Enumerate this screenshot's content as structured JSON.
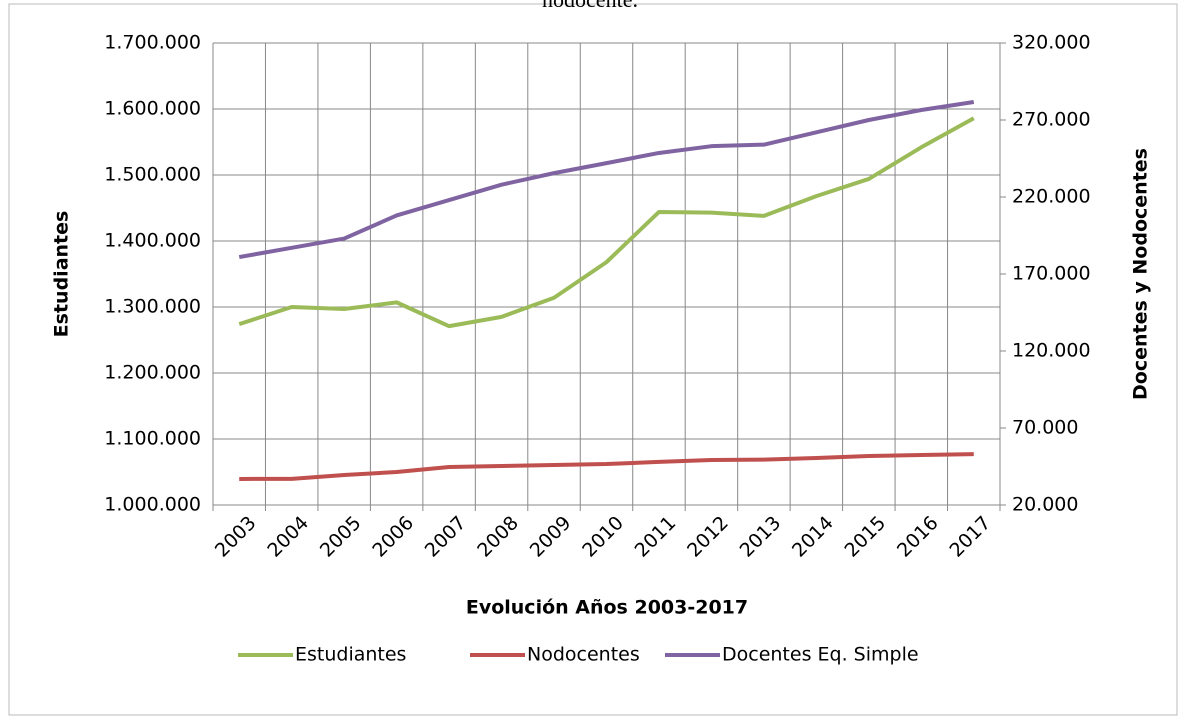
{
  "chart_data": {
    "type": "line",
    "title": "nodocente.",
    "x_label": "Evolución Años 2003-2017",
    "y_label": "Estudiantes",
    "y2_label": "Docentes y Nodocentes",
    "categories": [
      "2003",
      "2004",
      "2005",
      "2006",
      "2007",
      "2008",
      "2009",
      "2010",
      "2011",
      "2012",
      "2013",
      "2014",
      "2015",
      "2016",
      "2017"
    ],
    "series": [
      {
        "name": "Estudiantes",
        "color": "#9bbb59",
        "axis": "y",
        "values": [
          1274000,
          1300000,
          1297000,
          1307000,
          1271000,
          1285000,
          1314000,
          1368000,
          1444000,
          1443000,
          1438000,
          1468000,
          1494000,
          1542000,
          1586000
        ]
      },
      {
        "name": "Nodocentes",
        "color": "#c0504d",
        "axis": "y2",
        "values": [
          36900,
          37000,
          39500,
          41400,
          44700,
          45300,
          46000,
          46600,
          48000,
          49200,
          49500,
          50500,
          51800,
          52500,
          53000
        ]
      },
      {
        "name": "Docentes Eq. Simple",
        "color": "#8064a2",
        "axis": "y2",
        "values": [
          181000,
          187000,
          193000,
          208000,
          218000,
          228000,
          235500,
          242000,
          248600,
          253000,
          254000,
          262000,
          270000,
          276500,
          281700
        ]
      }
    ],
    "ylim": [
      1000000,
      1700000
    ],
    "yticks": [
      {
        "value": 1000000,
        "label": "1.000.000"
      },
      {
        "value": 1100000,
        "label": "1.100.000"
      },
      {
        "value": 1200000,
        "label": "1.200.000"
      },
      {
        "value": 1300000,
        "label": "1.300.000"
      },
      {
        "value": 1400000,
        "label": "1.400.000"
      },
      {
        "value": 1500000,
        "label": "1.500.000"
      },
      {
        "value": 1600000,
        "label": "1.600.000"
      },
      {
        "value": 1700000,
        "label": "1.700.000"
      }
    ],
    "y2lim": [
      20000,
      320000
    ],
    "y2ticks": [
      {
        "value": 20000,
        "label": "20.000"
      },
      {
        "value": 70000,
        "label": "70.000"
      },
      {
        "value": 120000,
        "label": "120.000"
      },
      {
        "value": 170000,
        "label": "170.000"
      },
      {
        "value": 220000,
        "label": "220.000"
      },
      {
        "value": 270000,
        "label": "270.000"
      },
      {
        "value": 320000,
        "label": "320.000"
      }
    ],
    "grid": true,
    "legend": "bottom"
  }
}
